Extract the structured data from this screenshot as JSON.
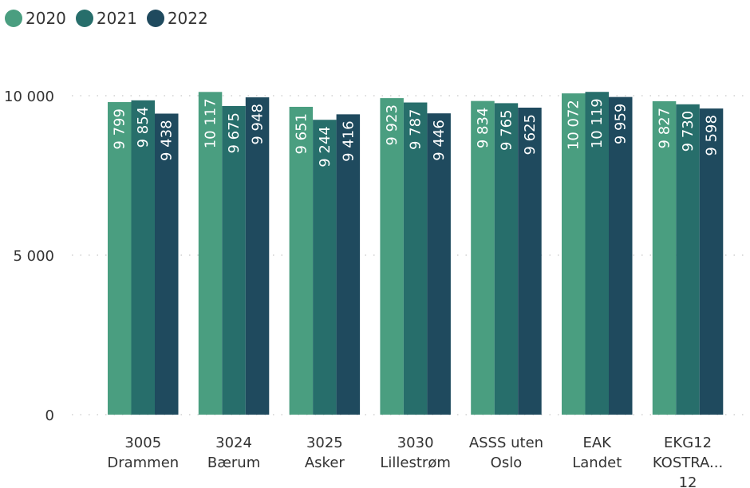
{
  "chart_data": {
    "type": "bar",
    "title": "",
    "xlabel": "",
    "ylabel": "",
    "ylim": [
      0,
      10500
    ],
    "yticks": [
      0,
      5000,
      10000
    ],
    "ytick_labels": [
      "0",
      "5 000",
      "10 000"
    ],
    "grid": true,
    "legend_position": "top-left",
    "categories": [
      [
        "3005",
        "Drammen"
      ],
      [
        "3024",
        "Bærum"
      ],
      [
        "3025",
        "Asker"
      ],
      [
        "3030",
        "Lillestrøm"
      ],
      [
        "ASSS uten",
        "Oslo"
      ],
      [
        "EAK",
        "Landet"
      ],
      [
        "EKG12",
        "KOSTRA...",
        "12"
      ]
    ],
    "series": [
      {
        "name": "2020",
        "color": "#4a9e80",
        "values": [
          9799,
          10117,
          9651,
          9923,
          9834,
          10072,
          9827
        ],
        "labels": [
          "9 799",
          "10 117",
          "9 651",
          "9 923",
          "9 834",
          "10 072",
          "9 827"
        ]
      },
      {
        "name": "2021",
        "color": "#276e6b",
        "values": [
          9854,
          9675,
          9244,
          9787,
          9765,
          10119,
          9730
        ],
        "labels": [
          "9 854",
          "9 675",
          "9 244",
          "9 787",
          "9 765",
          "10 119",
          "9 730"
        ]
      },
      {
        "name": "2022",
        "color": "#1f4a5e",
        "values": [
          9438,
          9948,
          9416,
          9446,
          9625,
          9959,
          9598
        ],
        "labels": [
          "9 438",
          "9 948",
          "9 416",
          "9 446",
          "9 625",
          "9 959",
          "9 598"
        ]
      }
    ]
  }
}
